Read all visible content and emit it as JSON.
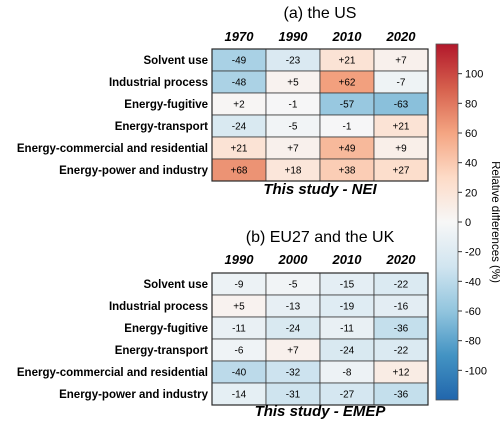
{
  "chart_data": [
    {
      "type": "heatmap",
      "title": "(a) the US",
      "columns": [
        "1970",
        "1990",
        "2010",
        "2020"
      ],
      "rows": [
        "Solvent use",
        "Industrial process",
        "Energy-fugitive",
        "Energy-transport",
        "Energy-commercial and residential",
        "Energy-power and industry"
      ],
      "values": [
        [
          -49,
          -23,
          21,
          7
        ],
        [
          -48,
          5,
          62,
          -7
        ],
        [
          2,
          -1,
          -57,
          -63
        ],
        [
          -24,
          -5,
          -1,
          21
        ],
        [
          21,
          7,
          49,
          9
        ],
        [
          68,
          18,
          38,
          27
        ]
      ],
      "cell_labels": [
        [
          "-49",
          "-23",
          "+21",
          "+7"
        ],
        [
          "-48",
          "+5",
          "+62",
          "-7"
        ],
        [
          "+2",
          "-1",
          "-57",
          "-63"
        ],
        [
          "-24",
          "-5",
          "-1",
          "+21"
        ],
        [
          "+21",
          "+7",
          "+49",
          "+9"
        ],
        [
          "+68",
          "+18",
          "+38",
          "+27"
        ]
      ],
      "footer": "This study - NEI"
    },
    {
      "type": "heatmap",
      "title": "(b) EU27 and the UK",
      "columns": [
        "1990",
        "2000",
        "2010",
        "2020"
      ],
      "rows": [
        "Solvent use",
        "Industrial process",
        "Energy-fugitive",
        "Energy-transport",
        "Energy-commercial and residential",
        "Energy-power and industry"
      ],
      "values": [
        [
          -9,
          -5,
          -15,
          -22
        ],
        [
          5,
          -13,
          -19,
          -16
        ],
        [
          -11,
          -24,
          -11,
          -36
        ],
        [
          -6,
          7,
          -24,
          -22
        ],
        [
          -40,
          -32,
          -8,
          12
        ],
        [
          -14,
          -31,
          -27,
          -36
        ]
      ],
      "cell_labels": [
        [
          "-9",
          "-5",
          "-15",
          "-22"
        ],
        [
          "+5",
          "-13",
          "-19",
          "-16"
        ],
        [
          "-11",
          "-24",
          "-11",
          "-36"
        ],
        [
          "-6",
          "+7",
          "-24",
          "-22"
        ],
        [
          "-40",
          "-32",
          "-8",
          "+12"
        ],
        [
          "-14",
          "-31",
          "-27",
          "-36"
        ]
      ],
      "footer": "This study - EMEP"
    }
  ],
  "colorbar": {
    "label": "Relative differences (%)",
    "range": [
      -120,
      120
    ],
    "ticks": [
      -100,
      -80,
      -60,
      -40,
      -20,
      0,
      20,
      40,
      60,
      80,
      100
    ],
    "tick_labels": [
      "-100",
      "-80",
      "-60",
      "-40",
      "-20",
      "0",
      "20",
      "40",
      "60",
      "80",
      "100"
    ],
    "colormap": [
      "#2166ac",
      "#4393c3",
      "#92c5de",
      "#d1e5f0",
      "#f7f7f7",
      "#fddbc7",
      "#f4a582",
      "#d6604d",
      "#b2182b"
    ]
  }
}
